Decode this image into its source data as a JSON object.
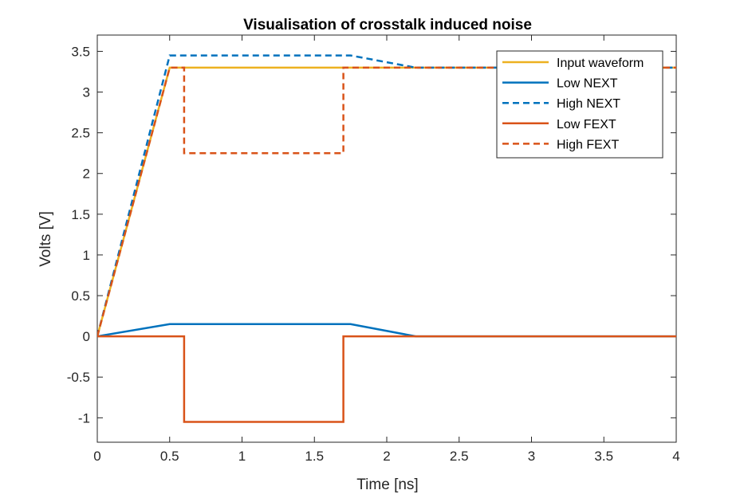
{
  "chart_data": {
    "type": "line",
    "title": "Visualisation of crosstalk induced noise",
    "xlabel": "Time [ns]",
    "ylabel": "Volts [V]",
    "xlim": [
      0,
      4
    ],
    "ylim": [
      -1.3,
      3.7
    ],
    "xticks": [
      0,
      0.5,
      1,
      1.5,
      2,
      2.5,
      3,
      3.5,
      4
    ],
    "xtick_labels": [
      "0",
      "0.5",
      "1",
      "1.5",
      "2",
      "2.5",
      "3",
      "3.5",
      "4"
    ],
    "yticks": [
      -1,
      -0.5,
      0,
      0.5,
      1,
      1.5,
      2,
      2.5,
      3,
      3.5
    ],
    "ytick_labels": [
      "-1",
      "-0.5",
      "0",
      "0.5",
      "1",
      "1.5",
      "2",
      "2.5",
      "3",
      "3.5"
    ],
    "grid": false,
    "legend_position": "top-right",
    "series": [
      {
        "name": "Input waveform",
        "color": "#EDB120",
        "style": "solid",
        "x": [
          0,
          0.5,
          4
        ],
        "y": [
          0,
          3.3,
          3.3
        ]
      },
      {
        "name": "Low NEXT",
        "color": "#0072BD",
        "style": "solid",
        "x": [
          0,
          0.5,
          1.75,
          2.2,
          4
        ],
        "y": [
          0,
          0.15,
          0.15,
          0,
          0
        ]
      },
      {
        "name": "High NEXT",
        "color": "#0072BD",
        "style": "dashed",
        "x": [
          0,
          0.5,
          1.75,
          2.2,
          4
        ],
        "y": [
          0,
          3.45,
          3.45,
          3.3,
          3.3
        ]
      },
      {
        "name": "Low FEXT",
        "color": "#D95319",
        "style": "solid",
        "x": [
          0,
          0.6,
          0.6,
          1.7,
          1.7,
          4
        ],
        "y": [
          0,
          0,
          -1.05,
          -1.05,
          0,
          0
        ]
      },
      {
        "name": "High FEXT",
        "color": "#D95319",
        "style": "dashed",
        "x": [
          0,
          0.5,
          0.6,
          0.6,
          1.7,
          1.7,
          4
        ],
        "y": [
          0,
          3.3,
          3.3,
          2.25,
          2.25,
          3.3,
          3.3
        ]
      }
    ]
  }
}
